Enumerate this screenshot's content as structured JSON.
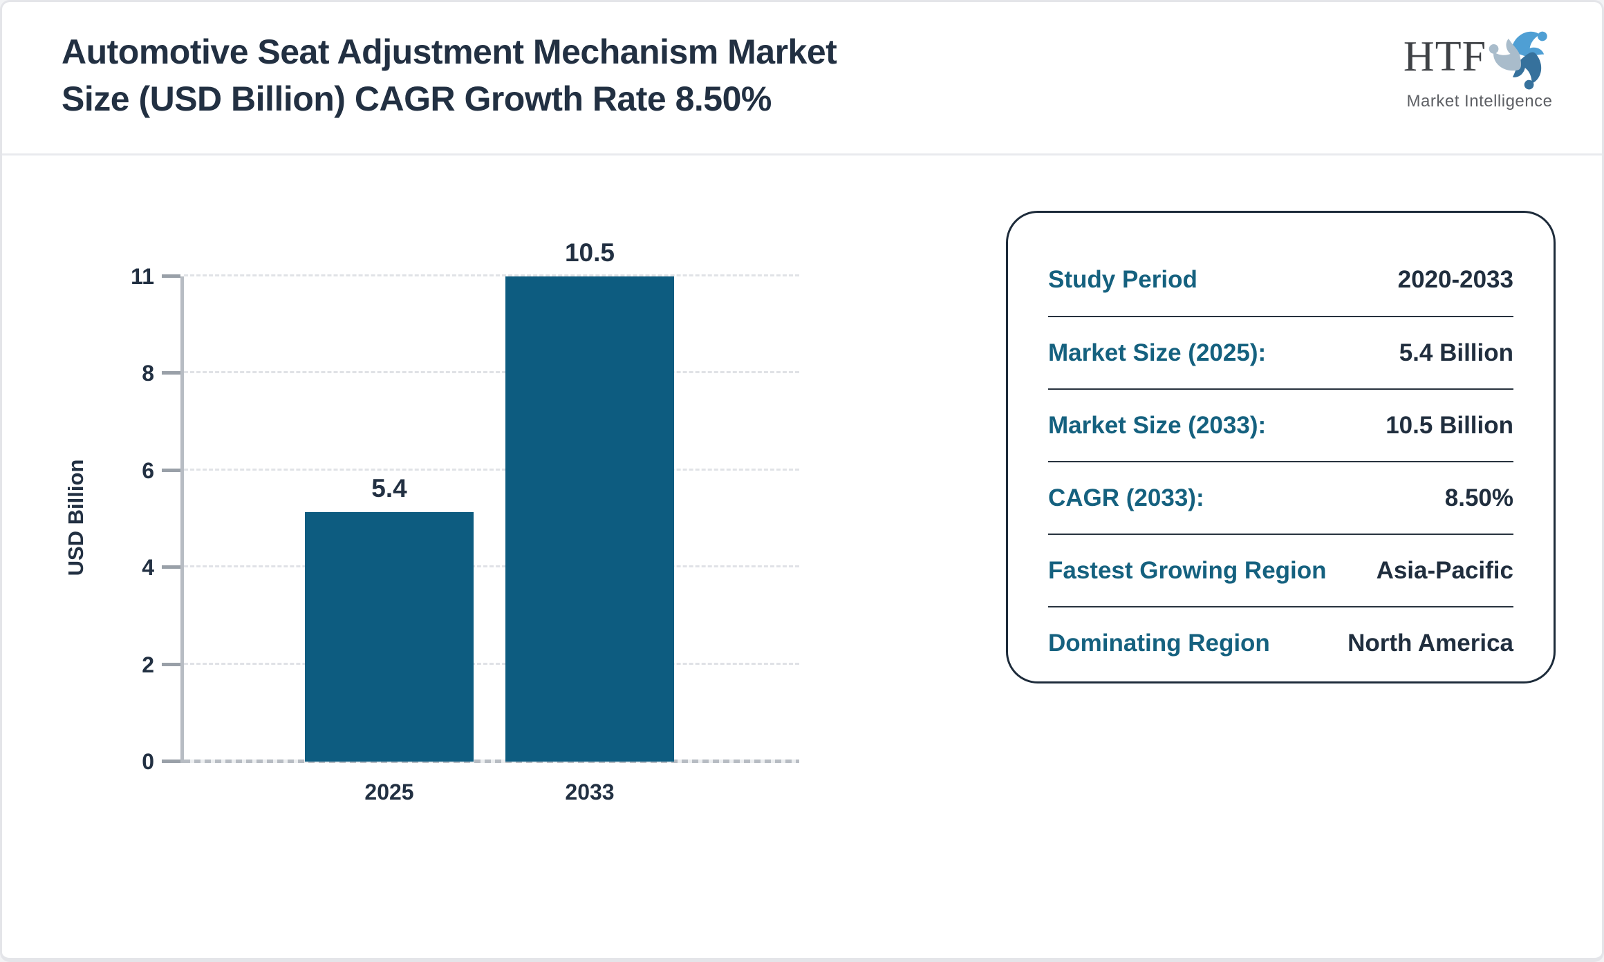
{
  "header": {
    "title_lines": [
      "Automotive Seat Adjustment Mechanism Market",
      "Size (USD Billion) CAGR Growth Rate 8.50%"
    ],
    "logo": {
      "name": "HTF",
      "tagline": "Market Intelligence",
      "mark_colors": [
        "#4f9fd4",
        "#36719c",
        "#a9bccb"
      ]
    }
  },
  "chart_data": {
    "type": "bar",
    "categories": [
      "2025",
      "2033"
    ],
    "values": [
      5.4,
      10.5
    ],
    "bar_value_labels": [
      "5.4",
      "10.5"
    ],
    "title": "",
    "xlabel": "",
    "ylabel": "USD Billion",
    "ytick_labels": [
      "0",
      "2",
      "4",
      "6",
      "8",
      "11"
    ],
    "ylim": [
      0,
      11
    ],
    "bar_color": "#0d5c80",
    "grid": "horizontal-dashed",
    "legend": "none"
  },
  "info_panel": {
    "rows": [
      {
        "label": "Study Period",
        "value": "2020-2033"
      },
      {
        "label": "Market Size (2025):",
        "value": "5.4 Billion"
      },
      {
        "label": "Market Size (2033):",
        "value": "10.5 Billion"
      },
      {
        "label": "CAGR (2033):",
        "value": "8.50%"
      },
      {
        "label": "Fastest Growing Region",
        "value": "Asia-Pacific"
      },
      {
        "label": "Dominating Region",
        "value": "North America"
      }
    ]
  },
  "colors": {
    "accent_teal": "#15617f",
    "dark_navy": "#223042",
    "bar": "#0d5c80",
    "axis_gray": "#b7bcc3"
  }
}
